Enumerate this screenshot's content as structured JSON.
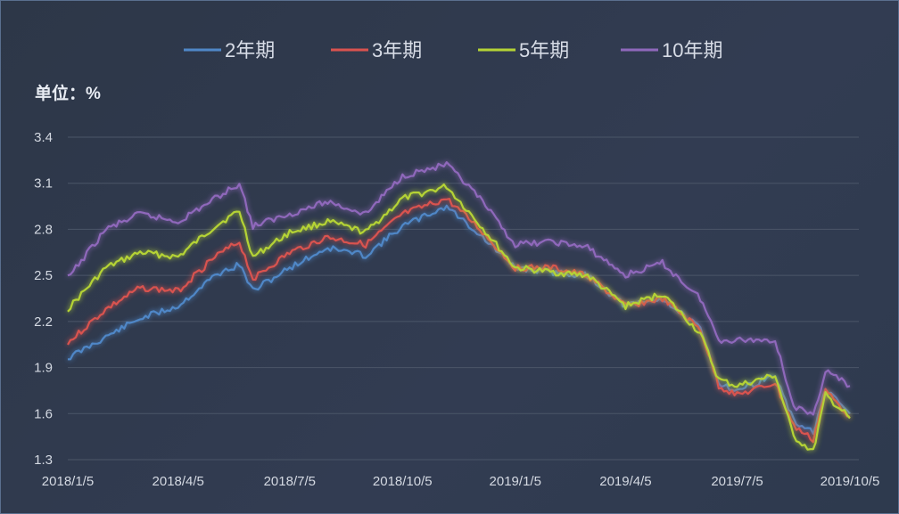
{
  "chart_data": {
    "type": "line",
    "unit_label": "单位：%",
    "y_ticks": [
      "3.4",
      "3.1",
      "2.8",
      "2.5",
      "2.2",
      "1.9",
      "1.6",
      "1.3"
    ],
    "ylim": [
      1.3,
      3.4
    ],
    "x_ticks": [
      "2018/1/5",
      "2018/4/5",
      "2018/7/5",
      "2018/10/5",
      "2019/1/5",
      "2019/4/5",
      "2019/7/5",
      "2019/10/5"
    ],
    "grid": "horizontal",
    "legend_position": "top",
    "series": [
      {
        "name": "2年期",
        "color": "#4f87c7",
        "points": [
          [
            "2018/1/5",
            1.96
          ],
          [
            "2018/2/5",
            2.1
          ],
          [
            "2018/3/5",
            2.22
          ],
          [
            "2018/4/5",
            2.3
          ],
          [
            "2018/5/5",
            2.5
          ],
          [
            "2018/5/25",
            2.57
          ],
          [
            "2018/6/5",
            2.4
          ],
          [
            "2018/7/5",
            2.55
          ],
          [
            "2018/8/5",
            2.68
          ],
          [
            "2018/9/5",
            2.63
          ],
          [
            "2018/10/5",
            2.82
          ],
          [
            "2018/11/10",
            2.95
          ],
          [
            "2018/12/5",
            2.78
          ],
          [
            "2019/1/5",
            2.55
          ],
          [
            "2019/2/5",
            2.52
          ],
          [
            "2019/3/5",
            2.5
          ],
          [
            "2019/4/5",
            2.3
          ],
          [
            "2019/5/5",
            2.35
          ],
          [
            "2019/6/5",
            2.15
          ],
          [
            "2019/6/20",
            1.8
          ],
          [
            "2019/7/5",
            1.75
          ],
          [
            "2019/8/5",
            1.85
          ],
          [
            "2019/8/20",
            1.55
          ],
          [
            "2019/9/5",
            1.48
          ],
          [
            "2019/9/15",
            1.75
          ],
          [
            "2019/10/5",
            1.6
          ]
        ]
      },
      {
        "name": "3年期",
        "color": "#d9534f",
        "points": [
          [
            "2018/1/5",
            2.06
          ],
          [
            "2018/2/5",
            2.28
          ],
          [
            "2018/3/5",
            2.42
          ],
          [
            "2018/4/5",
            2.4
          ],
          [
            "2018/5/5",
            2.62
          ],
          [
            "2018/5/25",
            2.72
          ],
          [
            "2018/6/5",
            2.48
          ],
          [
            "2018/7/5",
            2.65
          ],
          [
            "2018/8/5",
            2.75
          ],
          [
            "2018/9/5",
            2.7
          ],
          [
            "2018/10/5",
            2.9
          ],
          [
            "2018/11/10",
            3.0
          ],
          [
            "2018/12/5",
            2.82
          ],
          [
            "2019/1/5",
            2.55
          ],
          [
            "2019/2/5",
            2.55
          ],
          [
            "2019/3/5",
            2.5
          ],
          [
            "2019/4/5",
            2.3
          ],
          [
            "2019/5/5",
            2.35
          ],
          [
            "2019/6/5",
            2.15
          ],
          [
            "2019/6/20",
            1.78
          ],
          [
            "2019/7/5",
            1.72
          ],
          [
            "2019/8/5",
            1.8
          ],
          [
            "2019/8/20",
            1.52
          ],
          [
            "2019/9/5",
            1.43
          ],
          [
            "2019/9/15",
            1.75
          ],
          [
            "2019/10/5",
            1.58
          ]
        ]
      },
      {
        "name": "5年期",
        "color": "#b5d335",
        "points": [
          [
            "2018/1/5",
            2.28
          ],
          [
            "2018/2/5",
            2.55
          ],
          [
            "2018/3/5",
            2.65
          ],
          [
            "2018/4/5",
            2.62
          ],
          [
            "2018/5/5",
            2.82
          ],
          [
            "2018/5/25",
            2.92
          ],
          [
            "2018/6/5",
            2.62
          ],
          [
            "2018/7/5",
            2.78
          ],
          [
            "2018/8/5",
            2.85
          ],
          [
            "2018/9/5",
            2.78
          ],
          [
            "2018/10/5",
            3.0
          ],
          [
            "2018/11/10",
            3.08
          ],
          [
            "2018/12/5",
            2.85
          ],
          [
            "2019/1/5",
            2.55
          ],
          [
            "2019/2/5",
            2.52
          ],
          [
            "2019/3/5",
            2.5
          ],
          [
            "2019/4/5",
            2.3
          ],
          [
            "2019/5/5",
            2.38
          ],
          [
            "2019/6/5",
            2.12
          ],
          [
            "2019/6/20",
            1.82
          ],
          [
            "2019/7/5",
            1.78
          ],
          [
            "2019/8/5",
            1.85
          ],
          [
            "2019/8/20",
            1.45
          ],
          [
            "2019/9/5",
            1.35
          ],
          [
            "2019/9/15",
            1.72
          ],
          [
            "2019/10/5",
            1.57
          ]
        ]
      },
      {
        "name": "10年期",
        "color": "#8f68bb",
        "points": [
          [
            "2018/1/5",
            2.48
          ],
          [
            "2018/2/5",
            2.8
          ],
          [
            "2018/3/5",
            2.9
          ],
          [
            "2018/4/5",
            2.85
          ],
          [
            "2018/5/5",
            3.0
          ],
          [
            "2018/5/25",
            3.1
          ],
          [
            "2018/6/5",
            2.82
          ],
          [
            "2018/7/5",
            2.9
          ],
          [
            "2018/8/5",
            2.98
          ],
          [
            "2018/9/5",
            2.9
          ],
          [
            "2018/10/5",
            3.15
          ],
          [
            "2018/11/10",
            3.22
          ],
          [
            "2018/12/5",
            3.02
          ],
          [
            "2019/1/5",
            2.7
          ],
          [
            "2019/2/5",
            2.72
          ],
          [
            "2019/3/5",
            2.68
          ],
          [
            "2019/4/5",
            2.5
          ],
          [
            "2019/5/5",
            2.58
          ],
          [
            "2019/6/5",
            2.35
          ],
          [
            "2019/6/20",
            2.08
          ],
          [
            "2019/7/5",
            2.08
          ],
          [
            "2019/8/5",
            2.08
          ],
          [
            "2019/8/20",
            1.65
          ],
          [
            "2019/9/5",
            1.58
          ],
          [
            "2019/9/15",
            1.88
          ],
          [
            "2019/10/5",
            1.78
          ]
        ]
      }
    ]
  }
}
